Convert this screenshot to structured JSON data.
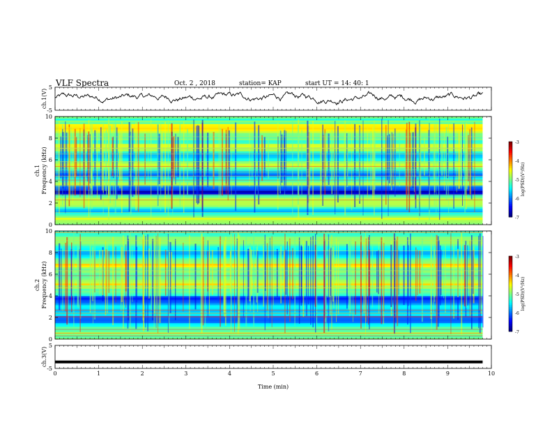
{
  "header": {
    "title": "VLF Spectra",
    "date": "Oct. 2 , 2018",
    "station": "station= KAP",
    "start_ut": "start  UT =   14: 40: 1"
  },
  "chart_data": [
    {
      "type": "line",
      "ylabel": "ch.1(V)",
      "ylim": [
        -5,
        5
      ],
      "yticks": [
        "5",
        "-5"
      ],
      "xlim": [
        0,
        10
      ],
      "x_end": 9.8,
      "line_color": "#000000",
      "baseline_approx": 0.5,
      "description_values": "noisy trace fluctuating roughly between -2 and 5 V"
    },
    {
      "type": "heatmap",
      "ylabel": [
        "ch.1",
        "Frequency  (kHz)"
      ],
      "ylim": [
        0,
        10
      ],
      "yticks": [
        "0",
        "2",
        "4",
        "6",
        "8",
        "10"
      ],
      "xlim": [
        0,
        10
      ],
      "colorbar": {
        "label": "log(PSD)(V²/Hz)",
        "range": [
          -7,
          -3
        ],
        "ticks": [
          "-3",
          "-4",
          "-5",
          "-6",
          "-7"
        ]
      }
    },
    {
      "type": "heatmap",
      "ylabel": [
        "ch.2",
        "Frequency  (kHz)"
      ],
      "ylim": [
        0,
        10
      ],
      "yticks": [
        "0",
        "2",
        "4",
        "6",
        "8",
        "10"
      ],
      "xlim": [
        0,
        10
      ],
      "colorbar": {
        "label": "log(PSD)(V²/Hz)",
        "range": [
          -7,
          -3
        ],
        "ticks": [
          "-3",
          "-4",
          "-5",
          "-6",
          "-7"
        ]
      }
    },
    {
      "type": "line",
      "ylabel": "ch.3(V)",
      "ylim": [
        -5,
        5
      ],
      "yticks": [
        "5",
        "-5"
      ],
      "xlim": [
        0,
        10
      ],
      "x_end": 9.8,
      "value": -2.2,
      "line_color": "#000000"
    }
  ],
  "xaxis": {
    "label": "Time  (min)",
    "ticks": [
      "0",
      "1",
      "2",
      "3",
      "4",
      "5",
      "6",
      "7",
      "8",
      "9",
      "10"
    ]
  }
}
